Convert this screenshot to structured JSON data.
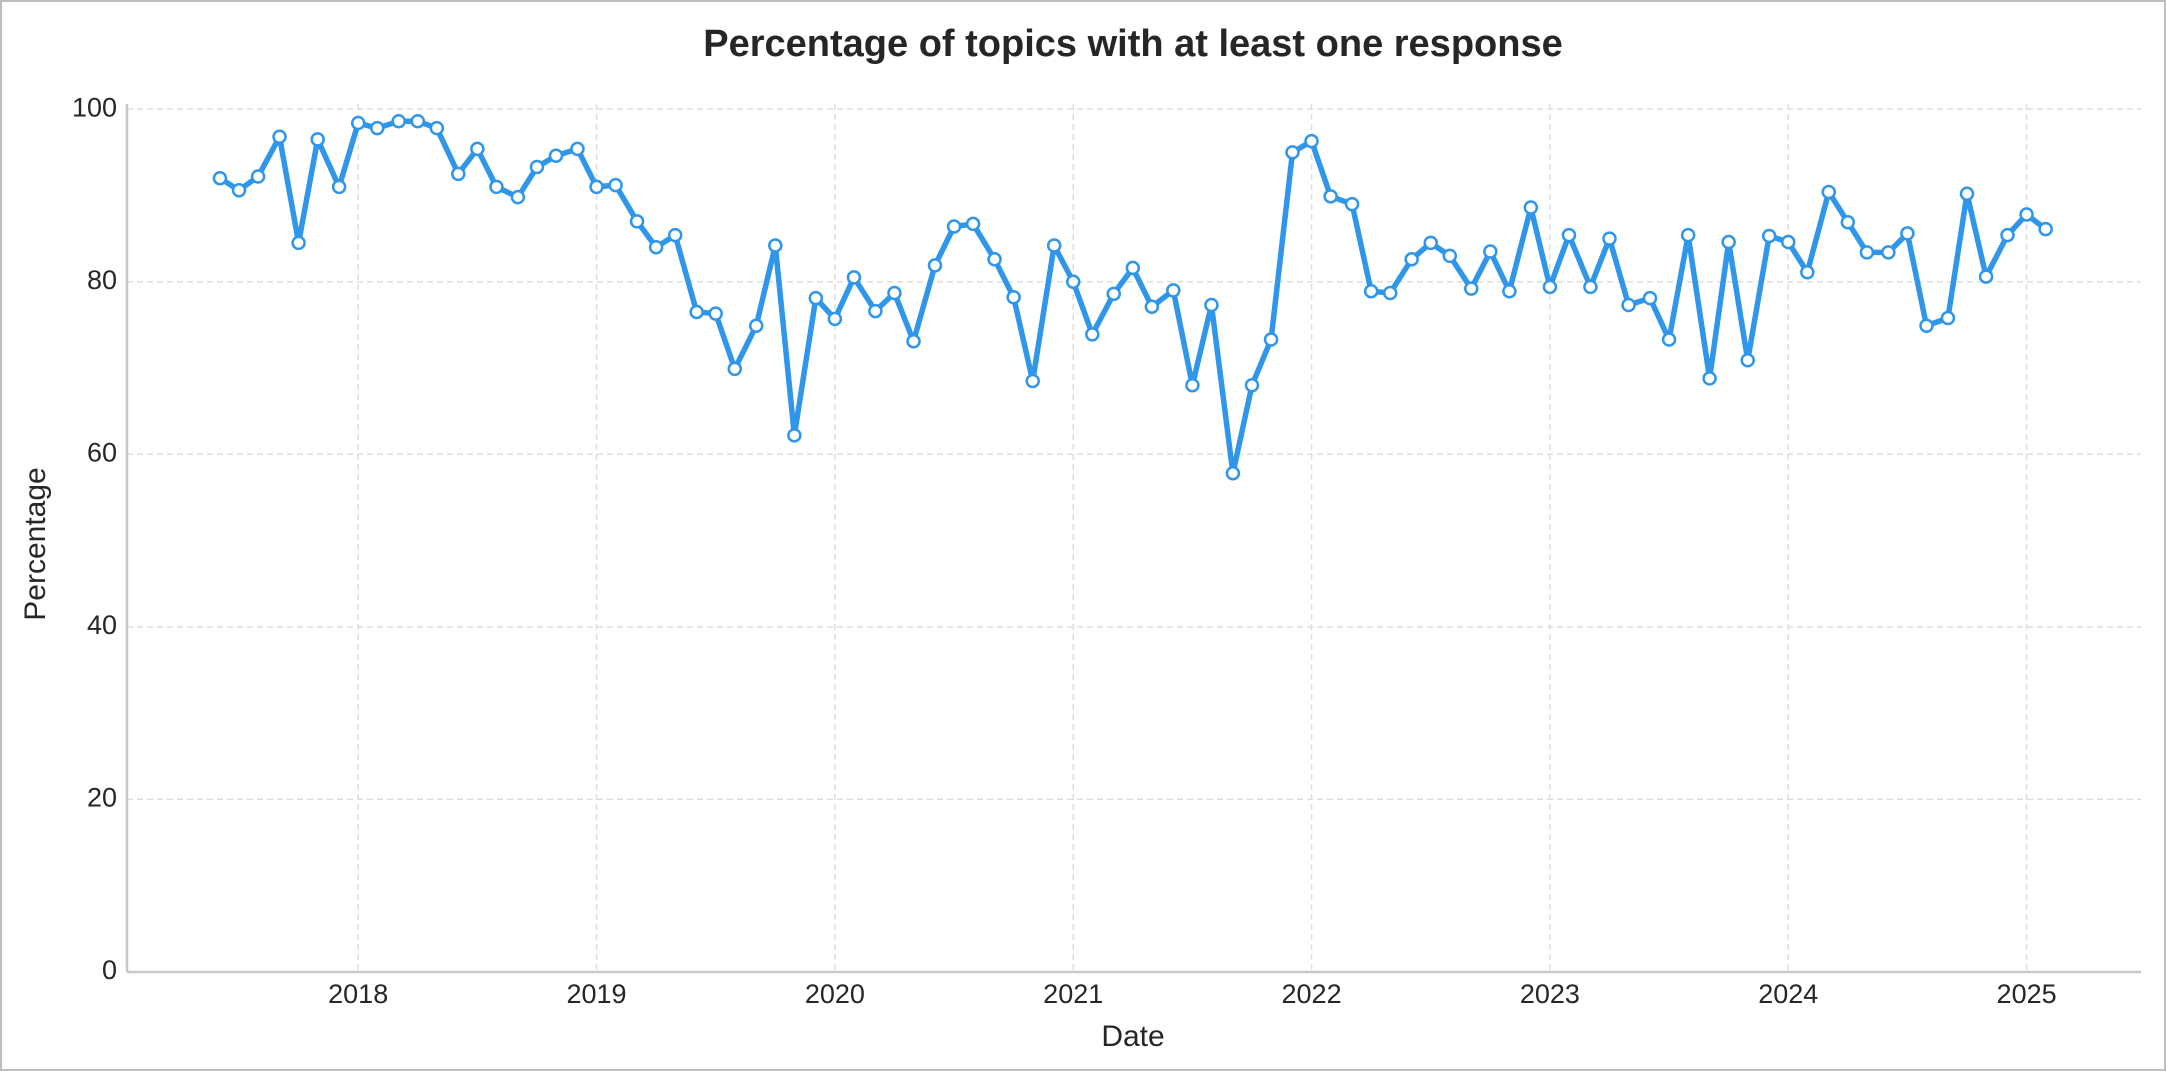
{
  "chart_data": {
    "type": "line",
    "title": "Percentage of topics with at least one response",
    "x_label": "Date",
    "y_label": "Percentage",
    "x": [
      2017.42,
      2017.5,
      2017.58,
      2017.67,
      2017.75,
      2017.83,
      2017.92,
      2018,
      2018.08,
      2018.17,
      2018.25,
      2018.33,
      2018.42,
      2018.5,
      2018.58,
      2018.67,
      2018.75,
      2018.83,
      2018.92,
      2019,
      2019.08,
      2019.17,
      2019.25,
      2019.33,
      2019.42,
      2019.5,
      2019.58,
      2019.67,
      2019.75,
      2019.83,
      2019.92,
      2020,
      2020.08,
      2020.17,
      2020.25,
      2020.33,
      2020.42,
      2020.5,
      2020.58,
      2020.67,
      2020.75,
      2020.83,
      2020.92,
      2021,
      2021.08,
      2021.17,
      2021.25,
      2021.33,
      2021.42,
      2021.5,
      2021.58,
      2021.67,
      2021.75,
      2021.83,
      2021.92,
      2022,
      2022.08,
      2022.17,
      2022.25,
      2022.33,
      2022.42,
      2022.5,
      2022.58,
      2022.67,
      2022.75,
      2022.83,
      2022.92,
      2023,
      2023.08,
      2023.17,
      2023.25,
      2023.33,
      2023.42,
      2023.5,
      2023.58,
      2023.67,
      2023.75,
      2023.83,
      2023.92,
      2024,
      2024.08,
      2024.17,
      2024.25,
      2024.33,
      2024.42,
      2024.5,
      2024.58,
      2024.67,
      2024.75,
      2024.83,
      2024.92,
      2025,
      2025.08
    ],
    "values": [
      92.0,
      90.6,
      92.2,
      96.8,
      84.5,
      96.5,
      91.0,
      98.4,
      97.8,
      98.6,
      98.6,
      97.8,
      92.5,
      95.4,
      91.0,
      89.8,
      93.3,
      94.6,
      95.4,
      91.0,
      91.2,
      87.0,
      84.0,
      85.4,
      76.5,
      76.3,
      69.9,
      74.9,
      84.2,
      62.2,
      78.1,
      75.7,
      80.5,
      76.6,
      78.7,
      73.1,
      81.9,
      86.4,
      86.7,
      82.6,
      78.2,
      68.5,
      84.2,
      80.0,
      73.9,
      78.6,
      81.6,
      77.1,
      79.0,
      68.0,
      77.3,
      57.8,
      68.0,
      73.3,
      95.0,
      96.3,
      89.9,
      89.0,
      78.9,
      78.7,
      82.6,
      84.5,
      83.0,
      79.2,
      83.5,
      78.9,
      88.6,
      79.4,
      85.4,
      79.4,
      85.0,
      77.3,
      78.1,
      73.3,
      85.4,
      68.8,
      84.6,
      70.9,
      85.3,
      84.6,
      81.1,
      90.4,
      86.9,
      83.4,
      83.4,
      85.6,
      74.9,
      75.8,
      90.2,
      80.6,
      85.4,
      87.8,
      86.1
    ],
    "color": "#2f96ea",
    "xlim": [
      2017.03,
      2025.48
    ],
    "xticks": [
      2018,
      2019,
      2020,
      2021,
      2022,
      2023,
      2024,
      2025
    ],
    "ylim": [
      0,
      100.6
    ],
    "yticks": [
      0,
      20,
      40,
      60,
      80,
      100
    ],
    "grid": true
  }
}
